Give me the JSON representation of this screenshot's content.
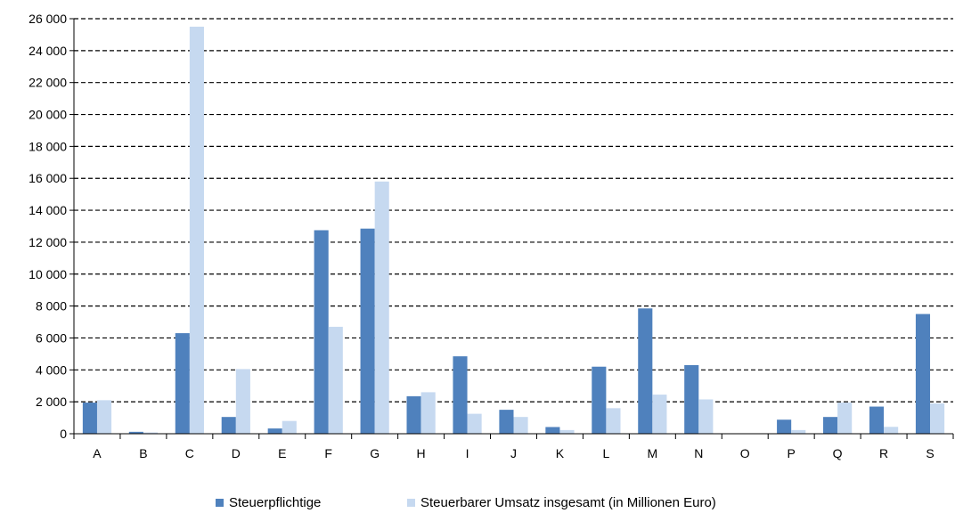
{
  "chart_data": {
    "type": "bar",
    "categories": [
      "A",
      "B",
      "C",
      "D",
      "E",
      "F",
      "G",
      "H",
      "I",
      "J",
      "K",
      "L",
      "M",
      "N",
      "O",
      "P",
      "Q",
      "R",
      "S"
    ],
    "series": [
      {
        "name": "Steuerpflichtige",
        "color": "#4f81bd",
        "values": [
          1950,
          120,
          6300,
          1050,
          330,
          12750,
          12850,
          2350,
          4850,
          1500,
          420,
          4200,
          7850,
          4300,
          0,
          880,
          1050,
          1700,
          7500
        ]
      },
      {
        "name": "Steuerbarer Umsatz insgesamt (in Millionen Euro)",
        "color": "#c6d9f0",
        "values": [
          2100,
          80,
          25500,
          4050,
          800,
          6700,
          15800,
          2600,
          1250,
          1050,
          230,
          1600,
          2450,
          2150,
          0,
          230,
          1950,
          430,
          1900
        ]
      }
    ],
    "ylim": [
      0,
      26000
    ],
    "yticks": [
      0,
      2000,
      4000,
      6000,
      8000,
      10000,
      12000,
      14000,
      16000,
      18000,
      20000,
      22000,
      24000,
      26000
    ],
    "ytick_labels": [
      "0",
      "2 000",
      "4 000",
      "6 000",
      "8 000",
      "10 000",
      "12 000",
      "14 000",
      "16 000",
      "18 000",
      "20 000",
      "22 000",
      "24 000",
      "26 000"
    ],
    "grid": true,
    "legend_position": "bottom-center"
  }
}
